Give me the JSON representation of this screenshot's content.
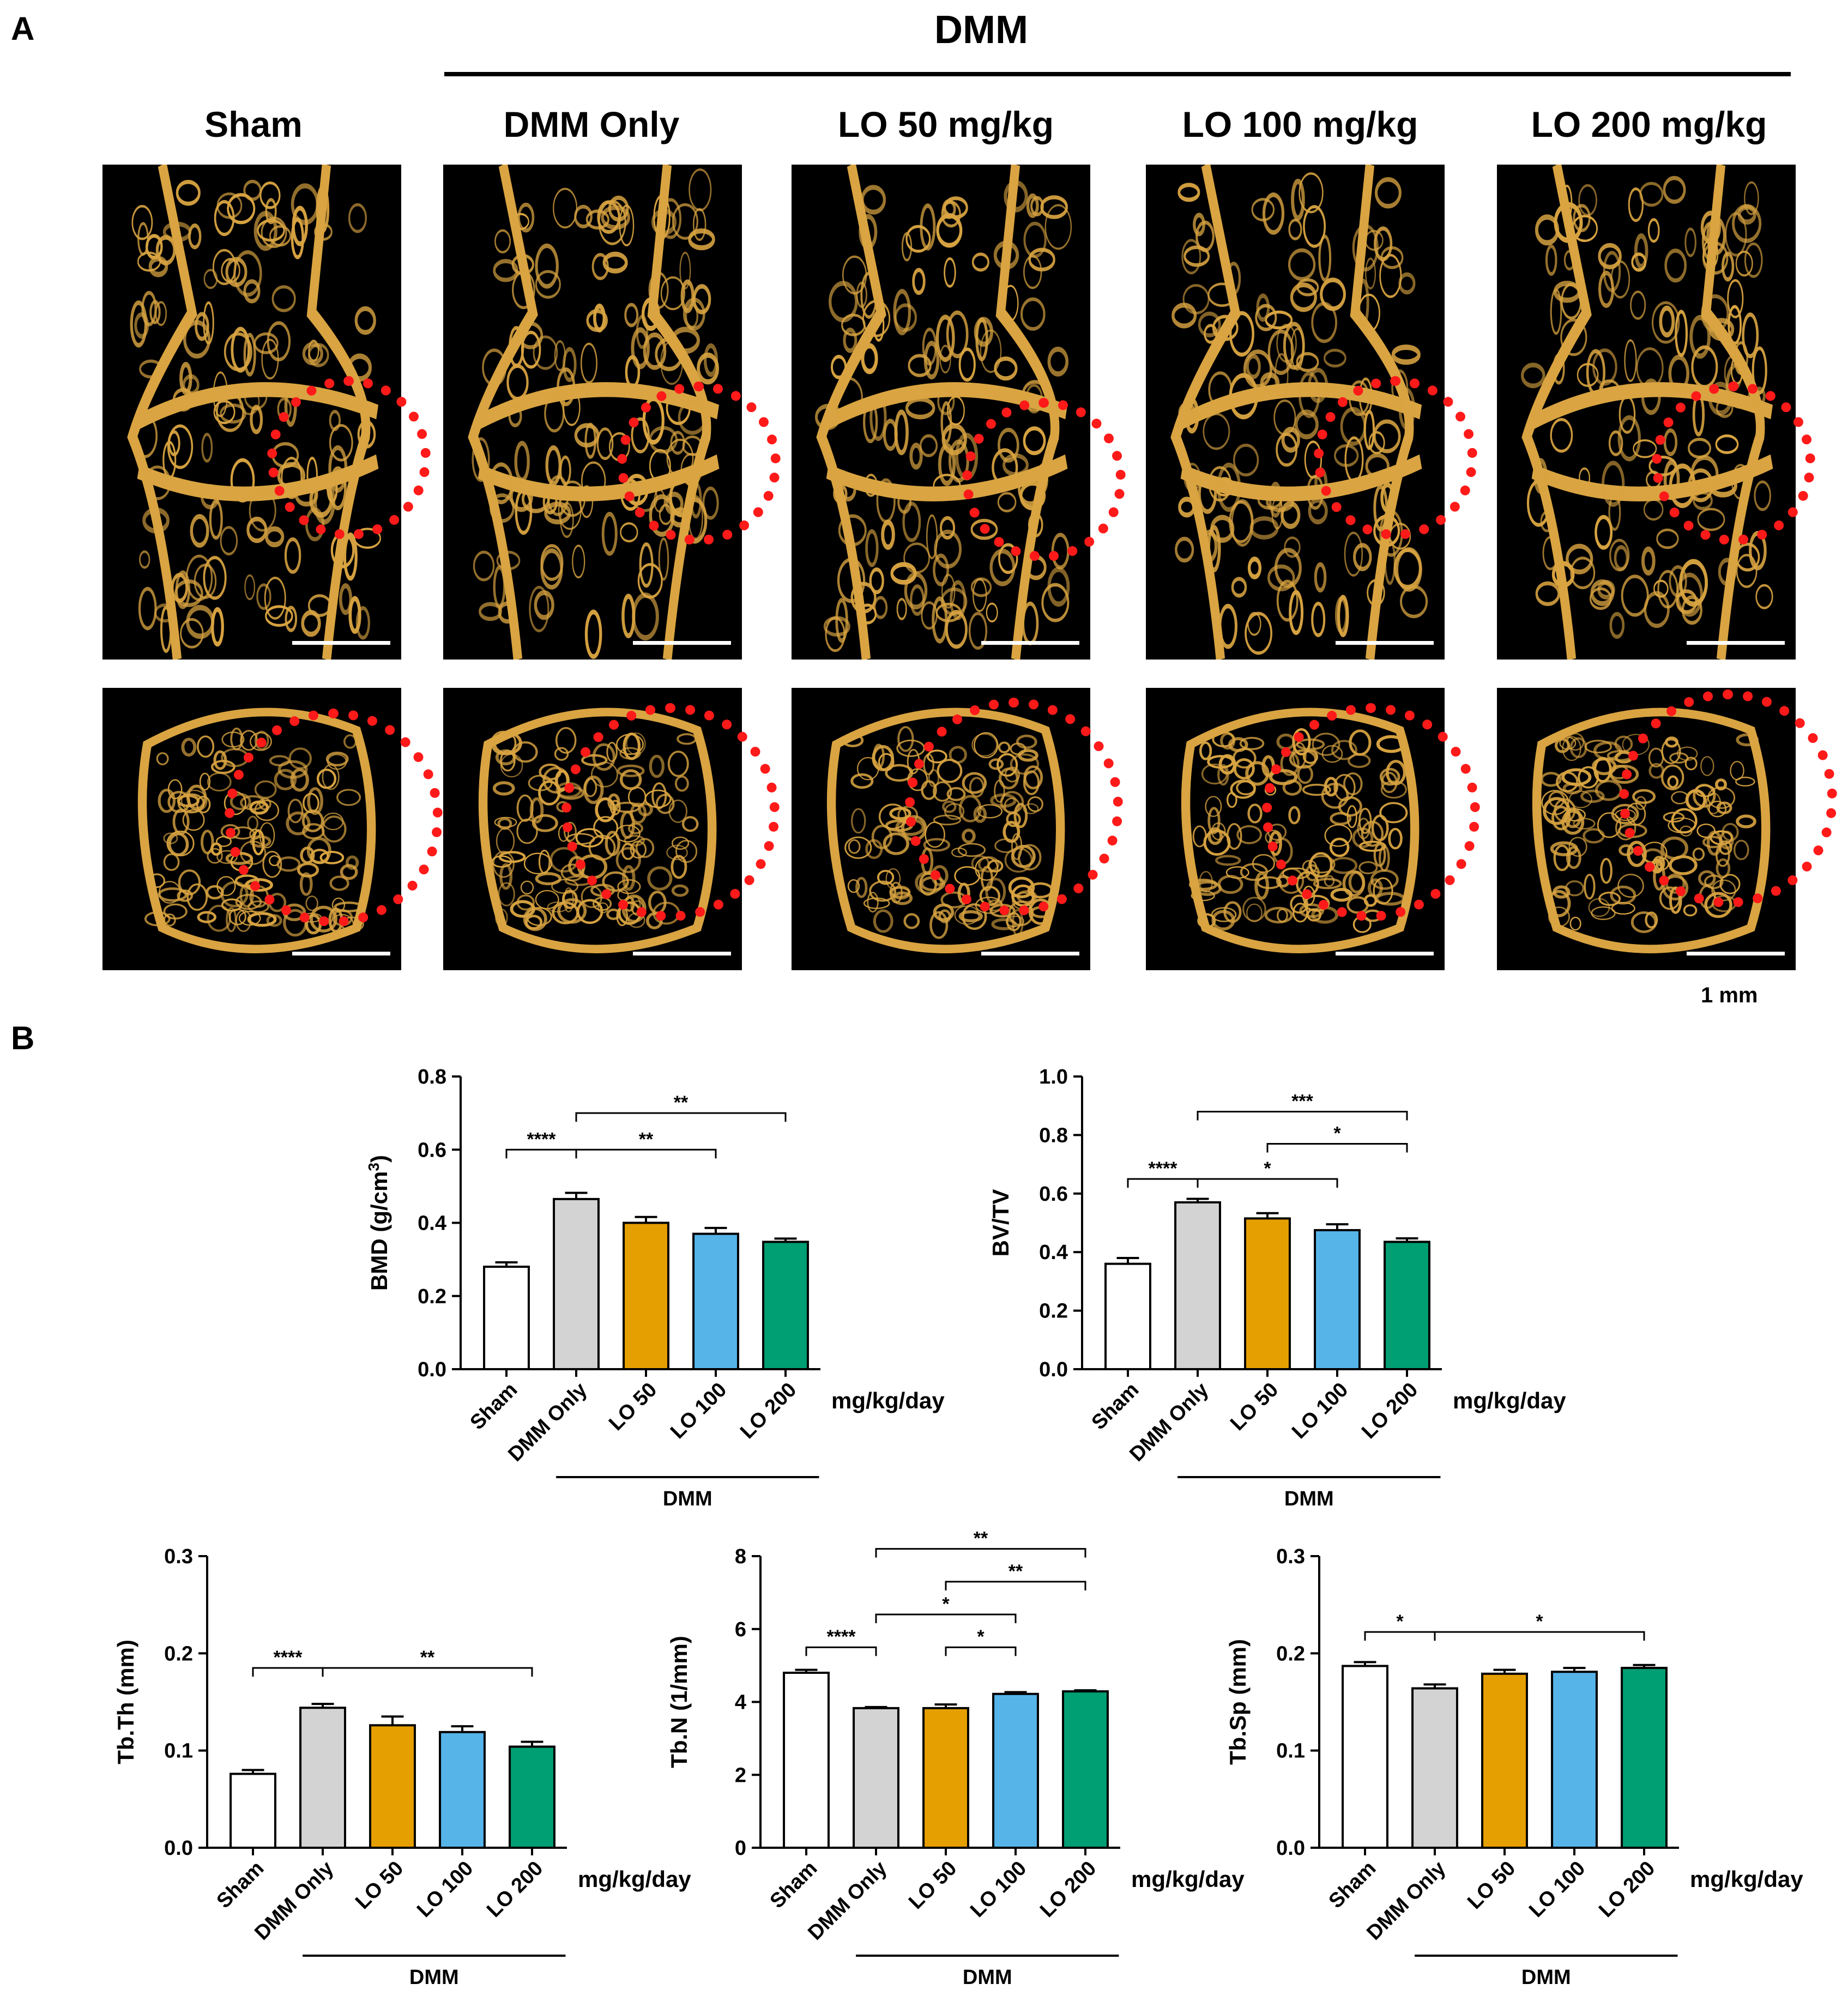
{
  "panel_a": {
    "letter": "A",
    "group_title": "DMM",
    "columns": [
      "Sham",
      "DMM Only",
      "LO 50 mg/kg",
      "LO 100 mg/kg",
      "LO 200 mg/kg"
    ],
    "scale_label": "1 mm",
    "colors": {
      "bone": "#d9a441",
      "highlight": "#ff1a1a",
      "background": "#000000"
    }
  },
  "panel_b": {
    "letter": "B"
  },
  "chart_data": [
    {
      "id": "bmd",
      "type": "bar",
      "categories": [
        "Sham",
        "DMM Only",
        "LO 50",
        "LO 100",
        "LO 200"
      ],
      "values": [
        0.28,
        0.465,
        0.4,
        0.37,
        0.348
      ],
      "errors": [
        0.012,
        0.017,
        0.016,
        0.016,
        0.009
      ],
      "colors": [
        "#ffffff",
        "#d3d3d3",
        "#e69f00",
        "#56b4e9",
        "#009e73"
      ],
      "ylabel": "BMD (g/cm",
      "ylabel_sup": "3",
      "ylabel_close": ")",
      "ylim": [
        0,
        0.8
      ],
      "yticks": [
        "0.0",
        "0.2",
        "0.4",
        "0.6",
        "0.8"
      ],
      "unit_label": "mg/kg/day",
      "group_label": "DMM",
      "significance": [
        {
          "from": 0,
          "to": 1,
          "label": "****",
          "level": 0.6
        },
        {
          "from": 1,
          "to": 3,
          "label": "**",
          "level": 0.6
        },
        {
          "from": 1,
          "to": 4,
          "label": "**",
          "level": 0.7
        }
      ]
    },
    {
      "id": "bvtv",
      "type": "bar",
      "categories": [
        "Sham",
        "DMM Only",
        "LO 50",
        "LO 100",
        "LO 200"
      ],
      "values": [
        0.36,
        0.57,
        0.515,
        0.475,
        0.435
      ],
      "errors": [
        0.02,
        0.012,
        0.018,
        0.02,
        0.012
      ],
      "colors": [
        "#ffffff",
        "#d3d3d3",
        "#e69f00",
        "#56b4e9",
        "#009e73"
      ],
      "ylabel": "BV/TV",
      "ylim": [
        0,
        1.0
      ],
      "yticks": [
        "0.0",
        "0.2",
        "0.4",
        "0.6",
        "0.8",
        "1.0"
      ],
      "unit_label": "mg/kg/day",
      "group_label": "DMM",
      "significance": [
        {
          "from": 0,
          "to": 1,
          "label": "****",
          "level": 0.65
        },
        {
          "from": 1,
          "to": 3,
          "label": "*",
          "level": 0.65
        },
        {
          "from": 2,
          "to": 4,
          "label": "*",
          "level": 0.77
        },
        {
          "from": 1,
          "to": 4,
          "label": "***",
          "level": 0.88
        }
      ]
    },
    {
      "id": "tbth",
      "type": "bar",
      "categories": [
        "Sham",
        "DMM Only",
        "LO 50",
        "LO 100",
        "LO 200"
      ],
      "values": [
        0.076,
        0.144,
        0.126,
        0.119,
        0.104
      ],
      "errors": [
        0.004,
        0.004,
        0.009,
        0.006,
        0.005
      ],
      "colors": [
        "#ffffff",
        "#d3d3d3",
        "#e69f00",
        "#56b4e9",
        "#009e73"
      ],
      "ylabel": "Tb.Th (mm)",
      "ylim": [
        0,
        0.3
      ],
      "yticks": [
        "0.0",
        "0.1",
        "0.2",
        "0.3"
      ],
      "unit_label": "mg/kg/day",
      "group_label": "DMM",
      "significance": [
        {
          "from": 0,
          "to": 1,
          "label": "****",
          "level": 0.185
        },
        {
          "from": 1,
          "to": 4,
          "label": "**",
          "level": 0.185
        }
      ]
    },
    {
      "id": "tbn",
      "type": "bar",
      "categories": [
        "Sham",
        "DMM Only",
        "LO 50",
        "LO 100",
        "LO 200"
      ],
      "values": [
        4.8,
        3.83,
        3.83,
        4.22,
        4.29
      ],
      "errors": [
        0.08,
        0.03,
        0.1,
        0.05,
        0.03
      ],
      "colors": [
        "#ffffff",
        "#d3d3d3",
        "#e69f00",
        "#56b4e9",
        "#009e73"
      ],
      "ylabel": "Tb.N (1/mm)",
      "ylim": [
        0,
        8
      ],
      "yticks": [
        "0",
        "2",
        "4",
        "6",
        "8"
      ],
      "unit_label": "mg/kg/day",
      "group_label": "DMM",
      "significance": [
        {
          "from": 0,
          "to": 1,
          "label": "****",
          "level": 5.5
        },
        {
          "from": 2,
          "to": 3,
          "label": "*",
          "level": 5.5
        },
        {
          "from": 1,
          "to": 3,
          "label": "*",
          "level": 6.4
        },
        {
          "from": 2,
          "to": 4,
          "label": "**",
          "level": 7.3
        },
        {
          "from": 1,
          "to": 4,
          "label": "**",
          "level": 8.2
        }
      ]
    },
    {
      "id": "tbsp",
      "type": "bar",
      "categories": [
        "Sham",
        "DMM Only",
        "LO 50",
        "LO 100",
        "LO 200"
      ],
      "values": [
        0.187,
        0.164,
        0.179,
        0.181,
        0.185
      ],
      "errors": [
        0.004,
        0.004,
        0.004,
        0.004,
        0.003
      ],
      "colors": [
        "#ffffff",
        "#d3d3d3",
        "#e69f00",
        "#56b4e9",
        "#009e73"
      ],
      "ylabel": "Tb.Sp (mm)",
      "ylim": [
        0,
        0.3
      ],
      "yticks": [
        "0.0",
        "0.1",
        "0.2",
        "0.3"
      ],
      "unit_label": "mg/kg/day",
      "group_label": "DMM",
      "significance": [
        {
          "from": 0,
          "to": 1,
          "label": "*",
          "level": 0.222
        },
        {
          "from": 1,
          "to": 4,
          "label": "*",
          "level": 0.222
        }
      ]
    }
  ]
}
